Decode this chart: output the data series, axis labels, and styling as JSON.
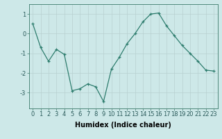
{
  "x": [
    0,
    1,
    2,
    3,
    4,
    5,
    6,
    7,
    8,
    9,
    10,
    11,
    12,
    13,
    14,
    15,
    16,
    17,
    18,
    19,
    20,
    21,
    22,
    23
  ],
  "y": [
    0.5,
    -0.7,
    -1.4,
    -0.8,
    -1.05,
    -2.9,
    -2.8,
    -2.55,
    -2.7,
    -3.45,
    -1.8,
    -1.2,
    -0.5,
    0.0,
    0.6,
    1.0,
    1.05,
    0.4,
    -0.1,
    -0.6,
    -1.0,
    -1.4,
    -1.85,
    -1.9
  ],
  "line_color": "#2e7d6e",
  "marker": "+",
  "marker_size": 3,
  "bg_color": "#cde8e8",
  "grid_color": "#b8d0d0",
  "xlabel": "Humidex (Indice chaleur)",
  "ylim": [
    -3.8,
    1.5
  ],
  "xlim": [
    -0.5,
    23.5
  ],
  "yticks": [
    -3,
    -2,
    -1,
    0,
    1
  ],
  "xticks": [
    0,
    1,
    2,
    3,
    4,
    5,
    6,
    7,
    8,
    9,
    10,
    11,
    12,
    13,
    14,
    15,
    16,
    17,
    18,
    19,
    20,
    21,
    22,
    23
  ],
  "tick_fontsize": 6,
  "xlabel_fontsize": 7,
  "spine_color": "#3a7a6a",
  "linewidth": 0.9,
  "markeredgewidth": 0.9
}
